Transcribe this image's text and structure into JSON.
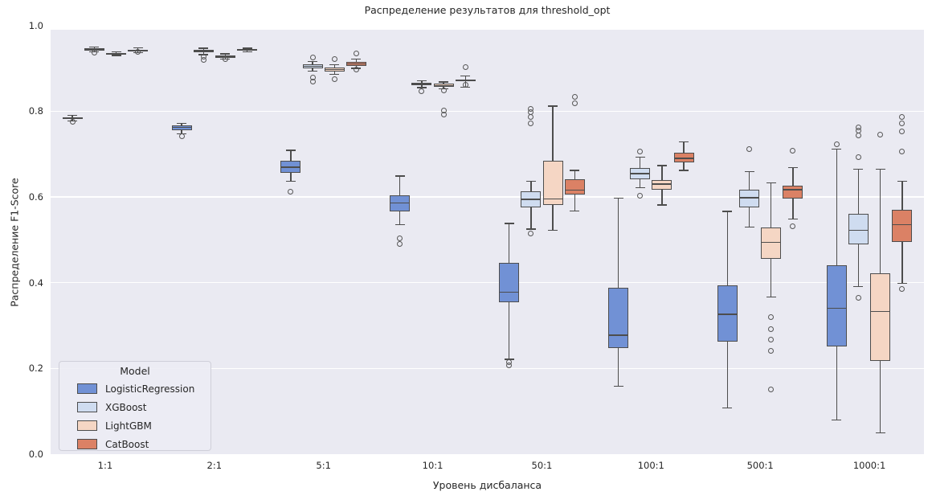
{
  "title": "Распределение результатов для threshold_opt",
  "x_axis": {
    "label": "Уровень дисбаланса",
    "categories": [
      "1:1",
      "2:1",
      "5:1",
      "10:1",
      "50:1",
      "100:1",
      "500:1",
      "1000:1"
    ]
  },
  "y_axis": {
    "label": "Распределение F1-Score",
    "ticks": [
      "0.0",
      "0.2",
      "0.4",
      "0.6",
      "0.8",
      "1.0"
    ],
    "tick_values": [
      0.0,
      0.2,
      0.4,
      0.6,
      0.8,
      1.0
    ]
  },
  "legend": {
    "title": "Model",
    "items": [
      {
        "label": "LogisticRegression",
        "color": "#7191d5"
      },
      {
        "label": "XGBoost",
        "color": "#cfdcf0"
      },
      {
        "label": "LightGBM",
        "color": "#f5d6c4"
      },
      {
        "label": "CatBoost",
        "color": "#db8165"
      }
    ]
  },
  "colors": {
    "plot_bg": "#eaeaf2",
    "grid": "#ffffff",
    "box_edge": "#4d4d4d",
    "text": "#262626"
  },
  "chart_data": {
    "type": "boxplot",
    "title": "Распределение результатов для threshold_opt",
    "xlabel": "Уровень дисбаланса",
    "ylabel": "Распределение F1-Score",
    "ylim": [
      0.0,
      1.0
    ],
    "grid": true,
    "legend_position": "lower-left",
    "categories": [
      "1:1",
      "2:1",
      "5:1",
      "10:1",
      "50:1",
      "100:1",
      "500:1",
      "1000:1"
    ],
    "series": [
      {
        "name": "LogisticRegression",
        "color": "#7191d5",
        "boxes": [
          {
            "whislo": 0.777,
            "q1": 0.781,
            "med": 0.783,
            "q3": 0.786,
            "whishi": 0.79,
            "outliers": [
              0.775
            ]
          },
          {
            "whislo": 0.747,
            "q1": 0.756,
            "med": 0.762,
            "q3": 0.767,
            "whishi": 0.771,
            "outliers": [
              0.742
            ]
          },
          {
            "whislo": 0.637,
            "q1": 0.656,
            "med": 0.669,
            "q3": 0.684,
            "whishi": 0.709,
            "outliers": [
              0.613
            ]
          },
          {
            "whislo": 0.535,
            "q1": 0.566,
            "med": 0.586,
            "q3": 0.604,
            "whishi": 0.649,
            "outliers": [
              0.503,
              0.491
            ]
          },
          {
            "whislo": 0.221,
            "q1": 0.354,
            "med": 0.378,
            "q3": 0.447,
            "whishi": 0.538,
            "outliers": [
              0.214,
              0.207
            ]
          },
          {
            "whislo": 0.158,
            "q1": 0.248,
            "med": 0.277,
            "q3": 0.389,
            "whishi": 0.597,
            "outliers": []
          },
          {
            "whislo": 0.108,
            "q1": 0.262,
            "med": 0.326,
            "q3": 0.394,
            "whishi": 0.566,
            "outliers": []
          },
          {
            "whislo": 0.08,
            "q1": 0.251,
            "med": 0.34,
            "q3": 0.441,
            "whishi": 0.712,
            "outliers": [
              0.723
            ]
          }
        ]
      },
      {
        "name": "XGBoost",
        "color": "#cfdcf0",
        "boxes": [
          {
            "whislo": 0.938,
            "q1": 0.942,
            "med": 0.944,
            "q3": 0.946,
            "whishi": 0.95,
            "outliers": [
              0.937
            ]
          },
          {
            "whislo": 0.932,
            "q1": 0.937,
            "med": 0.94,
            "q3": 0.943,
            "whishi": 0.947,
            "outliers": [
              0.927,
              0.92
            ]
          },
          {
            "whislo": 0.893,
            "q1": 0.9,
            "med": 0.905,
            "q3": 0.909,
            "whishi": 0.916,
            "outliers": [
              0.926,
              0.879,
              0.869
            ]
          },
          {
            "whislo": 0.855,
            "q1": 0.86,
            "med": 0.863,
            "q3": 0.866,
            "whishi": 0.871,
            "outliers": [
              0.847
            ]
          },
          {
            "whislo": 0.525,
            "q1": 0.576,
            "med": 0.594,
            "q3": 0.613,
            "whishi": 0.637,
            "outliers": [
              0.806,
              0.797,
              0.787,
              0.772,
              0.514
            ]
          },
          {
            "whislo": 0.622,
            "q1": 0.642,
            "med": 0.654,
            "q3": 0.667,
            "whishi": 0.693,
            "outliers": [
              0.706,
              0.603
            ]
          },
          {
            "whislo": 0.53,
            "q1": 0.575,
            "med": 0.598,
            "q3": 0.617,
            "whishi": 0.659,
            "outliers": [
              0.712
            ]
          },
          {
            "whislo": 0.391,
            "q1": 0.489,
            "med": 0.522,
            "q3": 0.561,
            "whishi": 0.665,
            "outliers": [
              0.763,
              0.754,
              0.744,
              0.693,
              0.365
            ]
          }
        ]
      },
      {
        "name": "LightGBM",
        "color": "#f5d6c4",
        "boxes": [
          {
            "whislo": 0.93,
            "q1": 0.932,
            "med": 0.934,
            "q3": 0.936,
            "whishi": 0.939,
            "outliers": []
          },
          {
            "whislo": 0.921,
            "q1": 0.925,
            "med": 0.927,
            "q3": 0.93,
            "whishi": 0.934,
            "outliers": [
              0.922
            ]
          },
          {
            "whislo": 0.886,
            "q1": 0.892,
            "med": 0.897,
            "q3": 0.902,
            "whishi": 0.909,
            "outliers": [
              0.921,
              0.875
            ]
          },
          {
            "whislo": 0.852,
            "q1": 0.857,
            "med": 0.86,
            "q3": 0.864,
            "whishi": 0.868,
            "outliers": [
              0.848,
              0.802,
              0.793
            ]
          },
          {
            "whislo": 0.522,
            "q1": 0.581,
            "med": 0.595,
            "q3": 0.684,
            "whishi": 0.812,
            "outliers": []
          },
          {
            "whislo": 0.581,
            "q1": 0.617,
            "med": 0.63,
            "q3": 0.639,
            "whishi": 0.673,
            "outliers": []
          },
          {
            "whislo": 0.366,
            "q1": 0.455,
            "med": 0.494,
            "q3": 0.528,
            "whishi": 0.633,
            "outliers": [
              0.32,
              0.292,
              0.267,
              0.241,
              0.151
            ]
          },
          {
            "whislo": 0.05,
            "q1": 0.217,
            "med": 0.333,
            "q3": 0.422,
            "whishi": 0.665,
            "outliers": [
              0.745
            ]
          }
        ]
      },
      {
        "name": "CatBoost",
        "color": "#db8165",
        "boxes": [
          {
            "whislo": 0.936,
            "q1": 0.94,
            "med": 0.942,
            "q3": 0.944,
            "whishi": 0.948,
            "outliers": [
              0.938
            ]
          },
          {
            "whislo": 0.938,
            "q1": 0.941,
            "med": 0.943,
            "q3": 0.945,
            "whishi": 0.947,
            "outliers": []
          },
          {
            "whislo": 0.9,
            "q1": 0.906,
            "med": 0.91,
            "q3": 0.915,
            "whishi": 0.921,
            "outliers": [
              0.935,
              0.897
            ]
          },
          {
            "whislo": 0.856,
            "q1": 0.87,
            "med": 0.872,
            "q3": 0.874,
            "whishi": 0.882,
            "outliers": [
              0.902,
              0.862
            ]
          },
          {
            "whislo": 0.567,
            "q1": 0.605,
            "med": 0.616,
            "q3": 0.641,
            "whishi": 0.662,
            "outliers": [
              0.834,
              0.819
            ]
          },
          {
            "whislo": 0.662,
            "q1": 0.681,
            "med": 0.69,
            "q3": 0.704,
            "whishi": 0.728,
            "outliers": []
          },
          {
            "whislo": 0.549,
            "q1": 0.597,
            "med": 0.617,
            "q3": 0.626,
            "whishi": 0.669,
            "outliers": [
              0.708,
              0.531
            ]
          },
          {
            "whislo": 0.399,
            "q1": 0.495,
            "med": 0.535,
            "q3": 0.57,
            "whishi": 0.636,
            "outliers": [
              0.787,
              0.771,
              0.753,
              0.706,
              0.385
            ]
          }
        ]
      }
    ]
  }
}
